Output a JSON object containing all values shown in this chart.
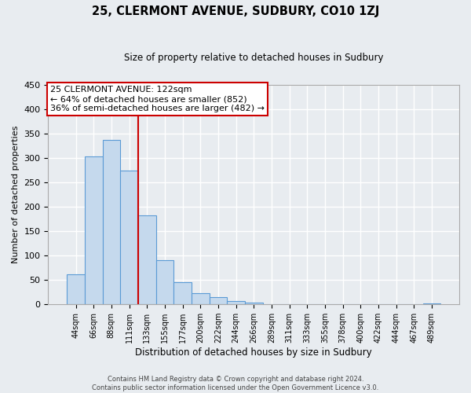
{
  "title": "25, CLERMONT AVENUE, SUDBURY, CO10 1ZJ",
  "subtitle": "Size of property relative to detached houses in Sudbury",
  "xlabel": "Distribution of detached houses by size in Sudbury",
  "ylabel": "Number of detached properties",
  "bar_labels": [
    "44sqm",
    "66sqm",
    "88sqm",
    "111sqm",
    "133sqm",
    "155sqm",
    "177sqm",
    "200sqm",
    "222sqm",
    "244sqm",
    "266sqm",
    "289sqm",
    "311sqm",
    "333sqm",
    "355sqm",
    "378sqm",
    "400sqm",
    "422sqm",
    "444sqm",
    "467sqm",
    "489sqm"
  ],
  "bar_values": [
    62,
    303,
    338,
    275,
    183,
    90,
    45,
    23,
    15,
    7,
    3,
    1,
    1,
    0,
    0,
    0,
    0,
    0,
    1,
    0,
    2
  ],
  "bar_color": "#c5d9ed",
  "bar_edge_color": "#5b9bd5",
  "vline_color": "#cc0000",
  "vline_pos": 3.5,
  "ylim": [
    0,
    450
  ],
  "yticks": [
    0,
    50,
    100,
    150,
    200,
    250,
    300,
    350,
    400,
    450
  ],
  "annotation_title": "25 CLERMONT AVENUE: 122sqm",
  "annotation_line1": "← 64% of detached houses are smaller (852)",
  "annotation_line2": "36% of semi-detached houses are larger (482) →",
  "annotation_box_color": "#ffffff",
  "annotation_box_edge": "#cc0000",
  "footer1": "Contains HM Land Registry data © Crown copyright and database right 2024.",
  "footer2": "Contains public sector information licensed under the Open Government Licence v3.0.",
  "background_color": "#e8ecf0",
  "grid_color": "#ffffff"
}
